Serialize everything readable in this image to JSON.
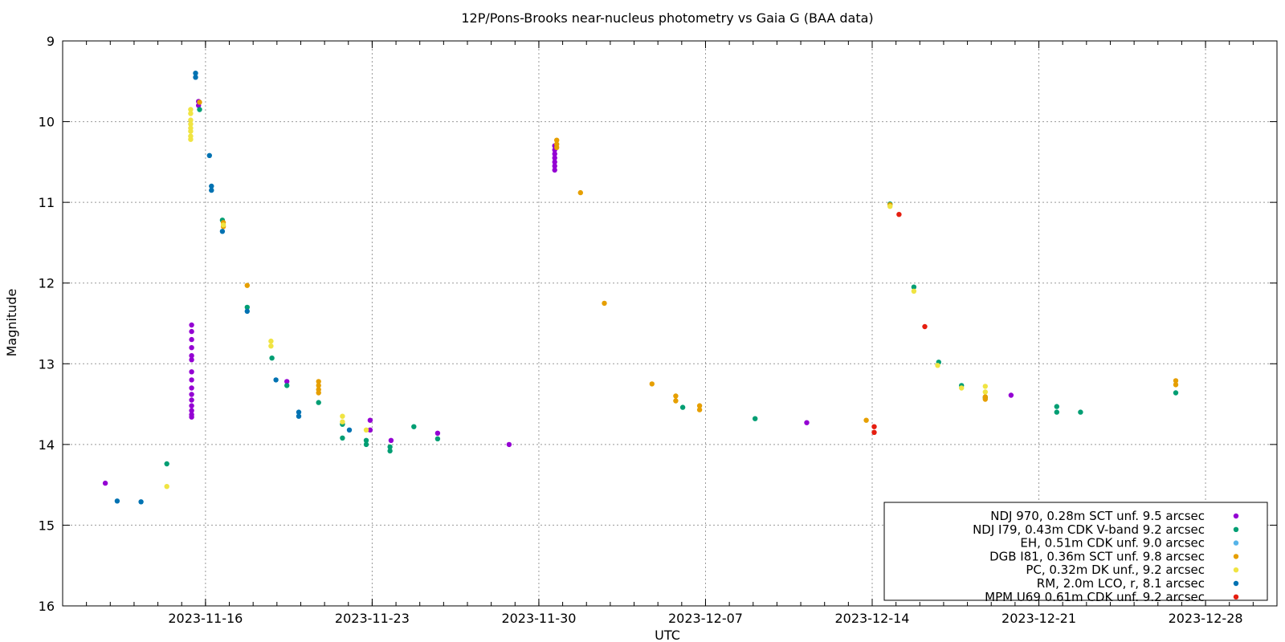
{
  "chart_data": {
    "type": "scatter",
    "title": "12P/Pons-Brooks near-nucleus photometry vs Gaia G (BAA data)",
    "xlabel": "UTC",
    "ylabel": "Magnitude",
    "ylim": [
      16,
      9
    ],
    "y_inverted": true,
    "xlim": [
      "2023-11-10",
      "2023-12-31"
    ],
    "x_ticks": [
      "2023-11-16",
      "2023-11-23",
      "2023-11-30",
      "2023-12-07",
      "2023-12-14",
      "2023-12-21",
      "2023-12-28"
    ],
    "y_ticks": [
      9,
      10,
      11,
      12,
      13,
      14,
      15,
      16
    ],
    "grid": true,
    "legend_position": "bottom-right",
    "series": [
      {
        "name": "NDJ 970, 0.28m SCT unf. 9.5 arcsec",
        "color": "#9400d3",
        "points": [
          [
            "2023-11-11 19:00",
            14.48
          ],
          [
            "2023-11-15 10:00",
            12.52
          ],
          [
            "2023-11-15 10:00",
            12.6
          ],
          [
            "2023-11-15 10:00",
            12.7
          ],
          [
            "2023-11-15 10:00",
            12.8
          ],
          [
            "2023-11-15 10:00",
            12.9
          ],
          [
            "2023-11-15 10:00",
            12.95
          ],
          [
            "2023-11-15 10:00",
            13.1
          ],
          [
            "2023-11-15 10:00",
            13.2
          ],
          [
            "2023-11-15 10:00",
            13.3
          ],
          [
            "2023-11-15 10:00",
            13.38
          ],
          [
            "2023-11-15 10:00",
            13.45
          ],
          [
            "2023-11-15 10:00",
            13.52
          ],
          [
            "2023-11-15 10:00",
            13.58
          ],
          [
            "2023-11-15 10:00",
            13.63
          ],
          [
            "2023-11-15 10:00",
            13.66
          ],
          [
            "2023-11-15 17:00",
            9.75
          ],
          [
            "2023-11-15 17:00",
            9.8
          ],
          [
            "2023-11-19 10:00",
            13.22
          ],
          [
            "2023-11-22 22:00",
            13.7
          ],
          [
            "2023-11-22 22:00",
            13.82
          ],
          [
            "2023-11-23 19:00",
            13.95
          ],
          [
            "2023-11-25 18:00",
            13.86
          ],
          [
            "2023-11-28 18:00",
            14.0
          ],
          [
            "2023-11-30 16:00",
            10.3
          ],
          [
            "2023-11-30 16:00",
            10.35
          ],
          [
            "2023-11-30 16:00",
            10.4
          ],
          [
            "2023-11-30 16:00",
            10.45
          ],
          [
            "2023-11-30 16:00",
            10.5
          ],
          [
            "2023-11-30 16:00",
            10.55
          ],
          [
            "2023-11-30 16:00",
            10.6
          ],
          [
            "2023-12-11 06:00",
            13.73
          ],
          [
            "2023-12-19 20:00",
            13.39
          ]
        ]
      },
      {
        "name": "NDJ I79, 0.43m CDK V-band 9.2 arcsec",
        "color": "#009e73",
        "points": [
          [
            "2023-11-14 09:00",
            14.24
          ],
          [
            "2023-11-15 18:00",
            9.85
          ],
          [
            "2023-11-16 17:00",
            11.22
          ],
          [
            "2023-11-17 18:00",
            12.3
          ],
          [
            "2023-11-18 19:00",
            12.93
          ],
          [
            "2023-11-19 10:00",
            13.27
          ],
          [
            "2023-11-20 18:00",
            13.48
          ],
          [
            "2023-11-21 18:00",
            13.75
          ],
          [
            "2023-11-21 18:00",
            13.92
          ],
          [
            "2023-11-22 18:00",
            13.95
          ],
          [
            "2023-11-22 18:00",
            14.0
          ],
          [
            "2023-11-23 18:00",
            14.03
          ],
          [
            "2023-11-23 18:00",
            14.08
          ],
          [
            "2023-11-24 18:00",
            13.78
          ],
          [
            "2023-11-25 18:00",
            13.93
          ],
          [
            "2023-12-06 01:00",
            13.54
          ],
          [
            "2023-12-09 02:00",
            13.68
          ],
          [
            "2023-12-14 18:00",
            11.02
          ],
          [
            "2023-12-15 18:00",
            12.05
          ],
          [
            "2023-12-16 19:00",
            12.98
          ],
          [
            "2023-12-17 18:00",
            13.27
          ],
          [
            "2023-12-18 18:00",
            13.42
          ],
          [
            "2023-12-21 18:00",
            13.53
          ],
          [
            "2023-12-21 18:00",
            13.6
          ],
          [
            "2023-12-22 18:00",
            13.6
          ],
          [
            "2023-12-26 18:00",
            13.36
          ]
        ]
      },
      {
        "name": "EH, 0.51m CDK unf. 9.0 arcsec",
        "color": "#56b4e9",
        "points": []
      },
      {
        "name": "DGB I81, 0.36m SCT unf. 9.8 arcsec",
        "color": "#e69f00",
        "points": [
          [
            "2023-11-15 18:00",
            9.76
          ],
          [
            "2023-11-16 18:00",
            11.25
          ],
          [
            "2023-11-16 18:00",
            11.3
          ],
          [
            "2023-11-17 18:00",
            12.03
          ],
          [
            "2023-11-20 18:00",
            13.22
          ],
          [
            "2023-11-20 18:00",
            13.27
          ],
          [
            "2023-11-20 18:00",
            13.32
          ],
          [
            "2023-11-20 18:00",
            13.36
          ],
          [
            "2023-11-30 18:00",
            10.23
          ],
          [
            "2023-11-30 18:00",
            10.28
          ],
          [
            "2023-11-30 18:00",
            10.32
          ],
          [
            "2023-12-01 18:00",
            10.88
          ],
          [
            "2023-12-02 18:00",
            12.25
          ],
          [
            "2023-12-04 18:00",
            13.25
          ],
          [
            "2023-12-05 18:00",
            13.4
          ],
          [
            "2023-12-05 18:00",
            13.46
          ],
          [
            "2023-12-06 18:00",
            13.52
          ],
          [
            "2023-12-06 18:00",
            13.57
          ],
          [
            "2023-12-13 18:00",
            13.7
          ],
          [
            "2023-12-14 18:00",
            11.03
          ],
          [
            "2023-12-18 18:00",
            13.41
          ],
          [
            "2023-12-18 18:00",
            13.44
          ],
          [
            "2023-12-26 18:00",
            13.21
          ],
          [
            "2023-12-26 18:00",
            13.26
          ]
        ]
      },
      {
        "name": "PC, 0.32m DK unf., 9.2 arcsec",
        "color": "#f0e442",
        "points": [
          [
            "2023-11-14 09:00",
            14.52
          ],
          [
            "2023-11-15 09:00",
            9.85
          ],
          [
            "2023-11-15 09:00",
            9.9
          ],
          [
            "2023-11-15 09:00",
            9.98
          ],
          [
            "2023-11-15 09:00",
            10.03
          ],
          [
            "2023-11-15 09:00",
            10.08
          ],
          [
            "2023-11-15 09:00",
            10.12
          ],
          [
            "2023-11-15 09:00",
            10.18
          ],
          [
            "2023-11-15 09:00",
            10.22
          ],
          [
            "2023-11-16 18:00",
            11.28
          ],
          [
            "2023-11-18 18:00",
            12.72
          ],
          [
            "2023-11-18 18:00",
            12.78
          ],
          [
            "2023-11-21 18:00",
            13.65
          ],
          [
            "2023-11-21 18:00",
            13.72
          ],
          [
            "2023-11-22 18:00",
            13.82
          ],
          [
            "2023-12-14 18:00",
            11.05
          ],
          [
            "2023-12-15 18:00",
            12.1
          ],
          [
            "2023-12-16 18:00",
            13.02
          ],
          [
            "2023-12-17 18:00",
            13.3
          ],
          [
            "2023-12-18 18:00",
            13.28
          ],
          [
            "2023-12-18 18:00",
            13.35
          ]
        ]
      },
      {
        "name": "RM, 2.0m LCO, r, 8.1 arcsec",
        "color": "#0072b2",
        "points": [
          [
            "2023-11-12 07:00",
            14.7
          ],
          [
            "2023-11-13 07:00",
            14.71
          ],
          [
            "2023-11-15 14:00",
            9.4
          ],
          [
            "2023-11-15 14:00",
            9.45
          ],
          [
            "2023-11-16 04:00",
            10.42
          ],
          [
            "2023-11-16 06:00",
            10.8
          ],
          [
            "2023-11-16 06:00",
            10.85
          ],
          [
            "2023-11-16 17:00",
            11.36
          ],
          [
            "2023-11-17 18:00",
            12.35
          ],
          [
            "2023-11-18 23:00",
            13.2
          ],
          [
            "2023-11-19 22:00",
            13.6
          ],
          [
            "2023-11-19 22:00",
            13.65
          ],
          [
            "2023-11-22 01:00",
            13.82
          ]
        ]
      },
      {
        "name": "MPM U69 0.61m CDK unf. 9.2 arcsec",
        "color": "#e51e10",
        "points": [
          [
            "2023-12-14 02:00",
            13.78
          ],
          [
            "2023-12-14 02:00",
            13.85
          ],
          [
            "2023-12-15 03:00",
            11.15
          ],
          [
            "2023-12-16 05:00",
            12.54
          ]
        ]
      }
    ]
  }
}
